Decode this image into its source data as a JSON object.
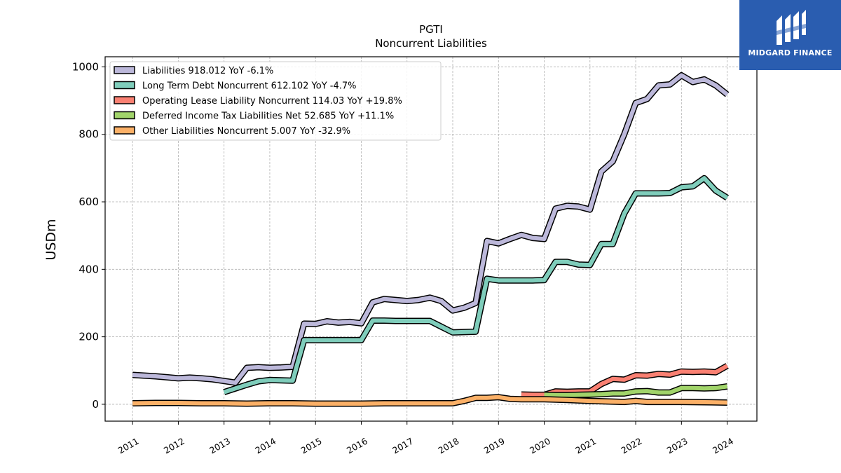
{
  "brand": {
    "name": "MIDGARD FINANCE",
    "color": "#2a5db0",
    "logo_icon": "midgard-logo-icon"
  },
  "chart_data": {
    "type": "line",
    "title": "PGTI",
    "subtitle": "Noncurrent  Liabilities",
    "xlabel": "",
    "ylabel": "USDm",
    "xlim": [
      2010.4,
      2024.65
    ],
    "ylim": [
      -50,
      1030
    ],
    "grid": true,
    "legend_position": "top-left",
    "y_ticks": [
      0,
      200,
      400,
      600,
      800,
      1000
    ],
    "x_ticks": [
      2011,
      2012,
      2013,
      2014,
      2015,
      2016,
      2017,
      2018,
      2019,
      2020,
      2021,
      2022,
      2023,
      2024
    ],
    "x_tick_labels": [
      "2011",
      "2012",
      "2013",
      "2014",
      "2015",
      "2016",
      "2017",
      "2018",
      "2019",
      "2020",
      "2021",
      "2022",
      "2023",
      "2024"
    ],
    "series": [
      {
        "name": "Liabilities",
        "legend_label": "Liabilities  918.012 YoY -6.1%",
        "color": "#bcb8da",
        "x": [
          2011.0,
          2011.25,
          2011.5,
          2011.75,
          2012.0,
          2012.25,
          2012.5,
          2012.75,
          2013.0,
          2013.25,
          2013.5,
          2013.75,
          2014.0,
          2014.25,
          2014.5,
          2014.75,
          2015.0,
          2015.25,
          2015.5,
          2015.75,
          2016.0,
          2016.25,
          2016.5,
          2016.75,
          2017.0,
          2017.25,
          2017.5,
          2017.75,
          2018.0,
          2018.25,
          2018.5,
          2018.75,
          2019.0,
          2019.25,
          2019.5,
          2019.75,
          2020.0,
          2020.25,
          2020.5,
          2020.75,
          2021.0,
          2021.25,
          2021.5,
          2021.75,
          2022.0,
          2022.25,
          2022.5,
          2022.75,
          2023.0,
          2023.25,
          2023.5,
          2023.75,
          2024.0
        ],
        "y": [
          87,
          85,
          83,
          80,
          77,
          79,
          77,
          74,
          69,
          64,
          108,
          110,
          108,
          109,
          111,
          239,
          238,
          246,
          242,
          244,
          240,
          302,
          312,
          309,
          306,
          309,
          316,
          306,
          278,
          286,
          300,
          484,
          477,
          490,
          502,
          493,
          490,
          580,
          588,
          586,
          577,
          690,
          720,
          800,
          893,
          905,
          945,
          948,
          975,
          955,
          963,
          945,
          918
        ]
      },
      {
        "name": "Long Term Debt Noncurrent",
        "legend_label": "Long Term Debt Noncurrent  612.102 YoY -4.7%",
        "color": "#7fcdbb",
        "x": [
          2013.0,
          2013.25,
          2013.5,
          2013.75,
          2014.0,
          2014.25,
          2014.5,
          2014.75,
          2015.0,
          2015.25,
          2015.5,
          2015.75,
          2016.0,
          2016.25,
          2016.5,
          2016.75,
          2017.0,
          2017.25,
          2017.5,
          2017.75,
          2018.0,
          2018.25,
          2018.5,
          2018.75,
          2019.0,
          2019.25,
          2019.5,
          2019.75,
          2020.0,
          2020.25,
          2020.5,
          2020.75,
          2021.0,
          2021.25,
          2021.5,
          2021.75,
          2022.0,
          2022.25,
          2022.5,
          2022.75,
          2023.0,
          2023.25,
          2023.5,
          2023.75,
          2024.0
        ],
        "y": [
          36,
          47,
          58,
          68,
          72,
          71,
          70,
          190,
          190,
          190,
          190,
          190,
          190,
          248,
          248,
          247,
          247,
          247,
          247,
          230,
          213,
          214,
          215,
          372,
          367,
          367,
          367,
          367,
          368,
          422,
          422,
          414,
          413,
          475,
          475,
          565,
          625,
          625,
          625,
          626,
          643,
          646,
          670,
          633,
          612
        ]
      },
      {
        "name": "Operating Lease Liability Noncurrent",
        "legend_label": "Operating Lease Liability Noncurrent  114.03 YoY +19.8%",
        "color": "#fa8072",
        "x": [
          2019.5,
          2019.75,
          2020.0,
          2020.25,
          2020.5,
          2020.75,
          2021.0,
          2021.25,
          2021.5,
          2021.75,
          2022.0,
          2022.25,
          2022.5,
          2022.75,
          2023.0,
          2023.25,
          2023.5,
          2023.75,
          2024.0
        ],
        "y": [
          29,
          28,
          28,
          38,
          37,
          38,
          38,
          60,
          75,
          73,
          86,
          85,
          90,
          88,
          97,
          96,
          97,
          95,
          114
        ]
      },
      {
        "name": "Deferred Income Tax Liabilities Net",
        "legend_label": "Deferred Income Tax Liabilities Net  52.685 YoY +11.1%",
        "color": "#a1d46a",
        "x": [
          2020.0,
          2020.25,
          2020.5,
          2020.75,
          2021.0,
          2021.25,
          2021.5,
          2021.75,
          2022.0,
          2022.25,
          2022.5,
          2022.75,
          2023.0,
          2023.25,
          2023.5,
          2023.75,
          2024.0
        ],
        "y": [
          28,
          27,
          27,
          28,
          29,
          30,
          32,
          32,
          38,
          39,
          35,
          35,
          48,
          48,
          47,
          48,
          53
        ]
      },
      {
        "name": "Other Liabilities Noncurrent",
        "legend_label": "Other Liabilities Noncurrent  5.007 YoY -32.9%",
        "color": "#fbb067",
        "x": [
          2011.0,
          2011.5,
          2012.0,
          2012.5,
          2013.0,
          2013.5,
          2014.0,
          2014.5,
          2015.0,
          2015.5,
          2016.0,
          2016.5,
          2017.0,
          2017.5,
          2018.0,
          2018.25,
          2018.5,
          2018.75,
          2019.0,
          2019.25,
          2019.5,
          2020.0,
          2020.5,
          2021.0,
          2021.5,
          2021.75,
          2022.0,
          2022.25,
          2022.5,
          2023.0,
          2023.5,
          2024.0
        ],
        "y": [
          3,
          4,
          4,
          3,
          3,
          2,
          3,
          3,
          2,
          2,
          2,
          3,
          3,
          3,
          3,
          10,
          19,
          19,
          21,
          16,
          15,
          15,
          13,
          10,
          8,
          7,
          10,
          7,
          7,
          7,
          6,
          5
        ]
      }
    ]
  }
}
